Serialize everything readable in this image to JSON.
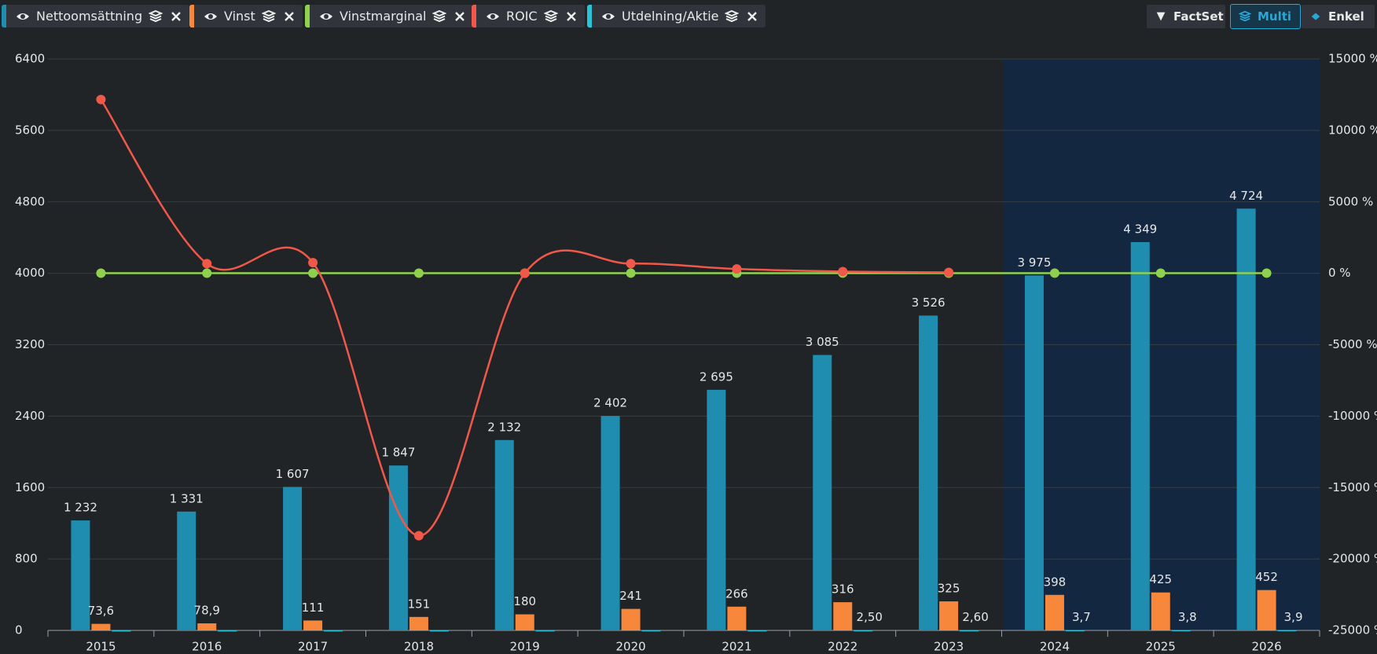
{
  "toolbar": {
    "buttons": [
      "FactSet",
      "Multi",
      "Enkel"
    ],
    "active": "Multi"
  },
  "chart_data": {
    "type": "bar",
    "categories": [
      "2015",
      "2016",
      "2017",
      "2018",
      "2019",
      "2020",
      "2021",
      "2022",
      "2023",
      "2024",
      "2025",
      "2026"
    ],
    "ylim": [
      0,
      6400
    ],
    "yticks": [
      0,
      800,
      1600,
      2400,
      3200,
      4000,
      4800,
      5600,
      6400
    ],
    "y2lim": [
      -25000,
      15000
    ],
    "y2ticks": [
      {
        "value": -25000,
        "label": "-25000 %"
      },
      {
        "value": -20000,
        "label": "-20000 %"
      },
      {
        "value": -15000,
        "label": "-15000 %"
      },
      {
        "value": -10000,
        "label": "-10000 %"
      },
      {
        "value": -5000,
        "label": "-5000 %"
      },
      {
        "value": 0,
        "label": "0 %"
      },
      {
        "value": 5000,
        "label": "5000 %"
      },
      {
        "value": 10000,
        "label": "10000 %"
      },
      {
        "value": 15000,
        "label": "15000 %"
      }
    ],
    "grid": true,
    "series": [
      {
        "name": "Nettoomsättning",
        "type": "bar",
        "color": "#1f8db0",
        "values": [
          1232,
          1331,
          1607,
          1847,
          2132,
          2402,
          2695,
          3085,
          3526,
          3975,
          4349,
          4724
        ],
        "value_labels": [
          "1 232",
          "1 331",
          "1 607",
          "1 847",
          "2 132",
          "2 402",
          "2 695",
          "3 085",
          "3 526",
          "3 975",
          "4 349",
          "4 724"
        ]
      },
      {
        "name": "Vinst",
        "type": "bar",
        "color": "#f7873a",
        "values": [
          73.6,
          78.9,
          111,
          151,
          180,
          241,
          266,
          316,
          325,
          398,
          425,
          452
        ],
        "value_labels": [
          "73,6",
          "78,9",
          "111",
          "151",
          "180",
          "241",
          "266",
          "316",
          "325",
          "398",
          "425",
          "452"
        ]
      },
      {
        "name": "Vinstmarginal",
        "type": "line",
        "axis": "y2",
        "color": "#8fd14f",
        "values": [
          6,
          6,
          7,
          8,
          8,
          10,
          10,
          10,
          9,
          10,
          10,
          10
        ]
      },
      {
        "name": "ROIC",
        "type": "line",
        "axis": "y2",
        "color": "#f0584a",
        "values": [
          12160,
          675,
          740,
          -18370,
          0,
          675,
          300,
          120,
          60,
          null,
          null,
          null
        ]
      },
      {
        "name": "Utdelning/Aktie",
        "type": "bar",
        "color": "#29c4d6",
        "values": [
          1.0,
          1.2,
          1.4,
          1.6,
          1.8,
          2.0,
          2.2,
          2.5,
          2.6,
          3.7,
          3.8,
          3.9
        ],
        "value_labels": [
          null,
          null,
          null,
          null,
          null,
          null,
          null,
          "2,50",
          "2,60",
          "3,7",
          "3,8",
          "3,9"
        ]
      }
    ]
  }
}
